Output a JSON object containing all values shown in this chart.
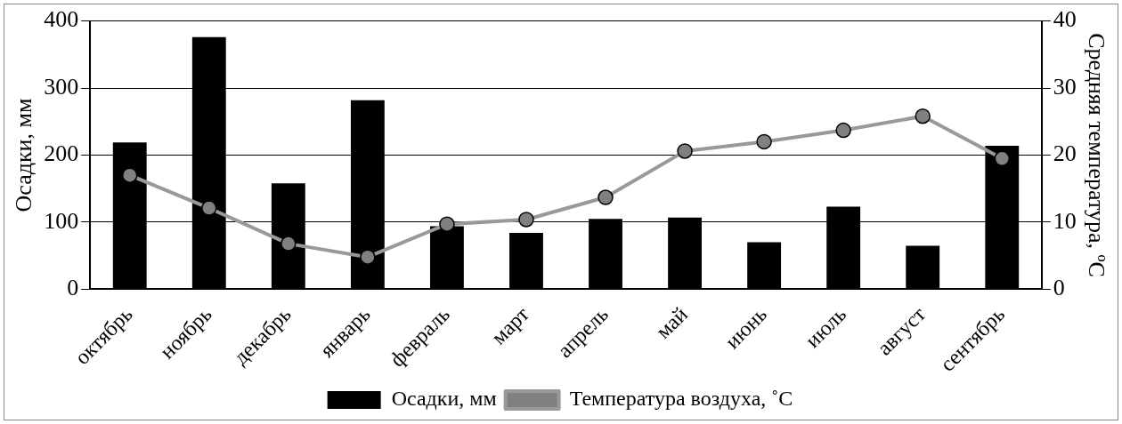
{
  "chart_data": {
    "type": "bar",
    "ylabel": "Осадки, мм",
    "y2label": "Средняя температура, ºC",
    "categories": [
      "октябрь",
      "ноябрь",
      "декабрь",
      "январь",
      "февраль",
      "март",
      "апрель",
      "май",
      "июнь",
      "июль",
      "август",
      "сентябрь"
    ],
    "series": [
      {
        "name": "Осадки, мм",
        "color": "#000000",
        "values": [
          219,
          376,
          158,
          282,
          94,
          84,
          105,
          107,
          70,
          123,
          65,
          214
        ]
      },
      {
        "name": "Температура воздуха, ˚C",
        "type": "line",
        "axis": "y2",
        "color": "#999999",
        "marker": "circle",
        "values": [
          17.0,
          12.1,
          6.8,
          4.8,
          9.7,
          10.4,
          13.7,
          20.6,
          22.0,
          23.7,
          25.8,
          19.5
        ]
      }
    ],
    "ylim": [
      0,
      400
    ],
    "yticks": [
      0,
      100,
      200,
      300,
      400
    ],
    "y2lim": [
      0,
      40
    ],
    "y2ticks": [
      0,
      10,
      20,
      30,
      40
    ],
    "grid": "y",
    "legend": "bottom"
  }
}
